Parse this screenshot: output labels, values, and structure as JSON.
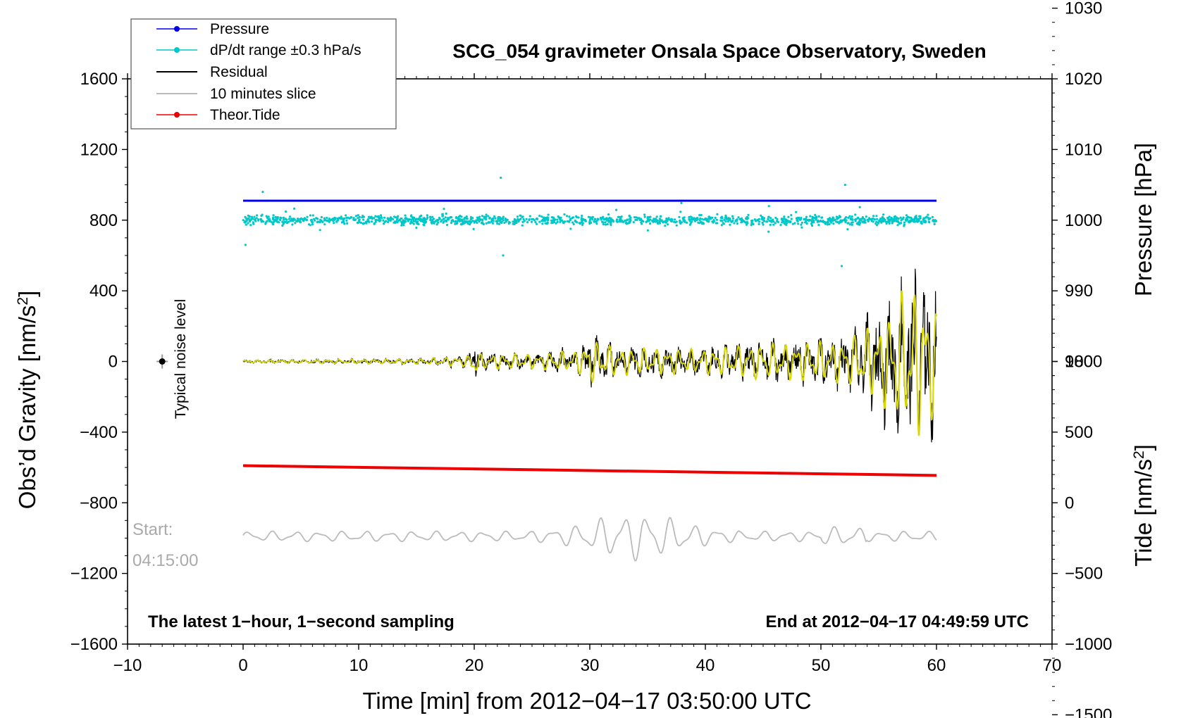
{
  "chart_data": {
    "type": "line",
    "title": "SCG_054 gravimeter Onsala Space Observatory, Sweden",
    "xlabel": "Time [min] from 2012−04−17 03:50:00 UTC",
    "xlim": [
      -10,
      70
    ],
    "x_ticks": [
      -10,
      0,
      10,
      20,
      30,
      40,
      50,
      60,
      70
    ],
    "x_tick_labels": [
      "−10",
      "0",
      "10",
      "20",
      "30",
      "40",
      "50",
      "60",
      "70"
    ],
    "y_left": {
      "label_base": "Obs’d Gravity [nm/s",
      "label_sup": "2",
      "label_end": "]",
      "ylim": [
        -1600,
        1600
      ],
      "ticks": [
        -1600,
        -1200,
        -800,
        -400,
        0,
        400,
        800,
        1200,
        1600
      ],
      "tick_labels": [
        "−1600",
        "−1200",
        "−800",
        "−400",
        "0",
        "400",
        "800",
        "1200",
        "1600"
      ]
    },
    "y_right_pressure": {
      "label": "Pressure [hPa]",
      "ticks": [
        980,
        990,
        1000,
        1010,
        1020,
        1030
      ],
      "tick_labels": [
        "980",
        "990",
        "1000",
        "1010",
        "1020",
        "1030"
      ],
      "gravity_equiv_at_1000": 800,
      "gravity_per_hPa": 40
    },
    "y_right_tide": {
      "label_base": "Tide [nm/s",
      "label_sup": "2",
      "label_end": "]",
      "ticks": [
        -1500,
        -1000,
        -500,
        0,
        500,
        1000
      ],
      "tick_labels": [
        "−1500",
        "−1000",
        "−500",
        "0",
        "500",
        "1000"
      ],
      "gravity_equiv_at_0": -800,
      "gravity_per_unit": 0.8
    },
    "legend": [
      {
        "label": "Pressure",
        "color": "#0000ee",
        "marker": true
      },
      {
        "label": "dP/dt range ±0.3 hPa/s",
        "color": "#00c8c8",
        "marker": true
      },
      {
        "label": "Residual",
        "color": "#000000",
        "marker": false
      },
      {
        "label": "10 minutes slice",
        "color": "#bbbbbb",
        "marker": false
      },
      {
        "label": "Theor.Tide",
        "color": "#ee0000",
        "marker": true
      }
    ],
    "series": [
      {
        "name": "Pressure",
        "color": "#0000ee",
        "gravity_level": 910,
        "x_range": [
          0,
          60
        ]
      },
      {
        "name": "dP/dt range ±0.3 hPa/s",
        "color": "#00c8c8",
        "gravity_center": 800,
        "x_range": [
          0,
          60
        ]
      },
      {
        "name": "Residual",
        "color": "#000000",
        "x_range": [
          0,
          60
        ],
        "envelope_x": [
          0,
          15,
          19.5,
          20,
          20.5,
          25,
          29,
          30,
          31,
          33,
          40,
          44,
          52,
          55,
          56,
          57,
          58,
          59,
          60
        ],
        "envelope_amp": [
          10,
          20,
          45,
          180,
          60,
          60,
          90,
          190,
          140,
          110,
          100,
          140,
          170,
          330,
          420,
          560,
          620,
          600,
          420
        ]
      },
      {
        "name": "Residual (filtered)",
        "color": "#d8d800",
        "x_range": [
          0,
          60
        ]
      },
      {
        "name": "Theor.Tide",
        "color": "#ee0000",
        "x": [
          0,
          60
        ],
        "y": [
          -590,
          -645
        ]
      },
      {
        "name": "10 minutes slice",
        "color": "#bbbbbb",
        "x_range": [
          0,
          60
        ],
        "gravity_center": -990
      }
    ],
    "annotations": {
      "noise_label": "Typical noise level",
      "noise_point": {
        "x": -7,
        "y": 0
      },
      "slice_start_label": "Start:",
      "slice_start_time": "04:15:00",
      "bottom_left": "The latest 1−hour, 1−second sampling",
      "bottom_right": "End at 2012−04−17 04:49:59 UTC"
    }
  }
}
